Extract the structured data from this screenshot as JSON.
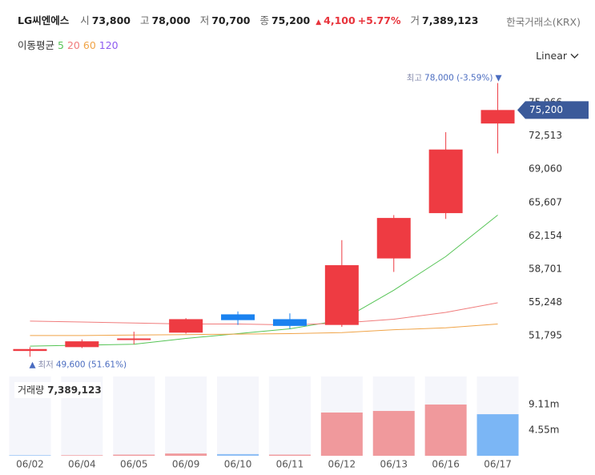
{
  "header": {
    "name": "LG씨엔에스",
    "open_label": "시",
    "open": "73,800",
    "high_label": "고",
    "high": "78,000",
    "low_label": "저",
    "low": "70,700",
    "close_label": "종",
    "close": "75,200",
    "change_arrow": "▲",
    "change": "4,100",
    "change_pct": "+5.77%",
    "volume_label": "거",
    "volume": "7,389,123",
    "exchange": "한국거래소(KRX)",
    "ma_label": "이동평균",
    "scale": "Linear"
  },
  "chart_data": {
    "type": "candlestick",
    "categories": [
      "06/02",
      "06/04",
      "06/05",
      "06/09",
      "06/10",
      "06/11",
      "06/12",
      "06/13",
      "06/16",
      "06/17"
    ],
    "open": [
      50200,
      50600,
      51400,
      52100,
      54000,
      53500,
      52900,
      59800,
      64500,
      73800
    ],
    "high": [
      50600,
      51400,
      52200,
      53600,
      54300,
      54100,
      61700,
      64300,
      72900,
      78000
    ],
    "low": [
      49600,
      50500,
      50900,
      52000,
      52900,
      52500,
      52700,
      58400,
      63900,
      70700
    ],
    "close": [
      50400,
      51200,
      51500,
      53500,
      53400,
      52800,
      59100,
      64000,
      71100,
      75200
    ],
    "up_color": "#ee3b42",
    "down_color": "#1a82f0",
    "ylim": [
      48800,
      79300
    ],
    "yticks": [
      {
        "value": 75966,
        "label": "75,966"
      },
      {
        "value": 72513,
        "label": "72,513"
      },
      {
        "value": 69060,
        "label": "69,060"
      },
      {
        "value": 65607,
        "label": "65,607"
      },
      {
        "value": 62154,
        "label": "62,154"
      },
      {
        "value": 58701,
        "label": "58,701"
      },
      {
        "value": 55248,
        "label": "55,248"
      },
      {
        "value": 51795,
        "label": "51,795"
      }
    ],
    "current_price": {
      "value": 75200,
      "label": "75,200",
      "color": "#3b5a9a"
    },
    "high_note": "최고",
    "high_note_value": "78,000 (-3.59%)",
    "high_note_arrow": "▼",
    "low_note": "최저",
    "low_note_value": "49,600 (51.61%)",
    "low_note_arrow": "▲",
    "moving_averages": [
      {
        "name": "5",
        "color": "#56c456",
        "values": [
          50700,
          50800,
          50900,
          51500,
          52000,
          52500,
          53400,
          56500,
          60000,
          64300
        ]
      },
      {
        "name": "20",
        "color": "#f07c7c",
        "values": [
          53300,
          53200,
          53100,
          53000,
          53000,
          52900,
          53100,
          53500,
          54200,
          55200
        ]
      },
      {
        "name": "60",
        "color": "#f0a448",
        "values": [
          51800,
          51800,
          51850,
          51900,
          51950,
          52000,
          52100,
          52400,
          52600,
          53000
        ]
      },
      {
        "name": "120",
        "color": "#8e5cf0",
        "values": [
          null,
          null,
          null,
          null,
          null,
          null,
          null,
          null,
          null,
          null
        ]
      }
    ],
    "volume": {
      "title": "거래량",
      "total": "7,389,123",
      "values": [
        100000,
        100000,
        200000,
        400000,
        300000,
        200000,
        7690000,
        7970000,
        9110000,
        7390000
      ],
      "colors": [
        "#8fbff5",
        "#f0999c",
        "#f0999c",
        "#f0999c",
        "#8fbff5",
        "#f0999c",
        "#f0999c",
        "#f0999c",
        "#f0999c",
        "#7bb6f5"
      ],
      "ylim": [
        0,
        14100000
      ],
      "yticks": [
        {
          "value": 9110000,
          "label": "9.11m"
        },
        {
          "value": 4550000,
          "label": "4.55m"
        }
      ]
    }
  }
}
